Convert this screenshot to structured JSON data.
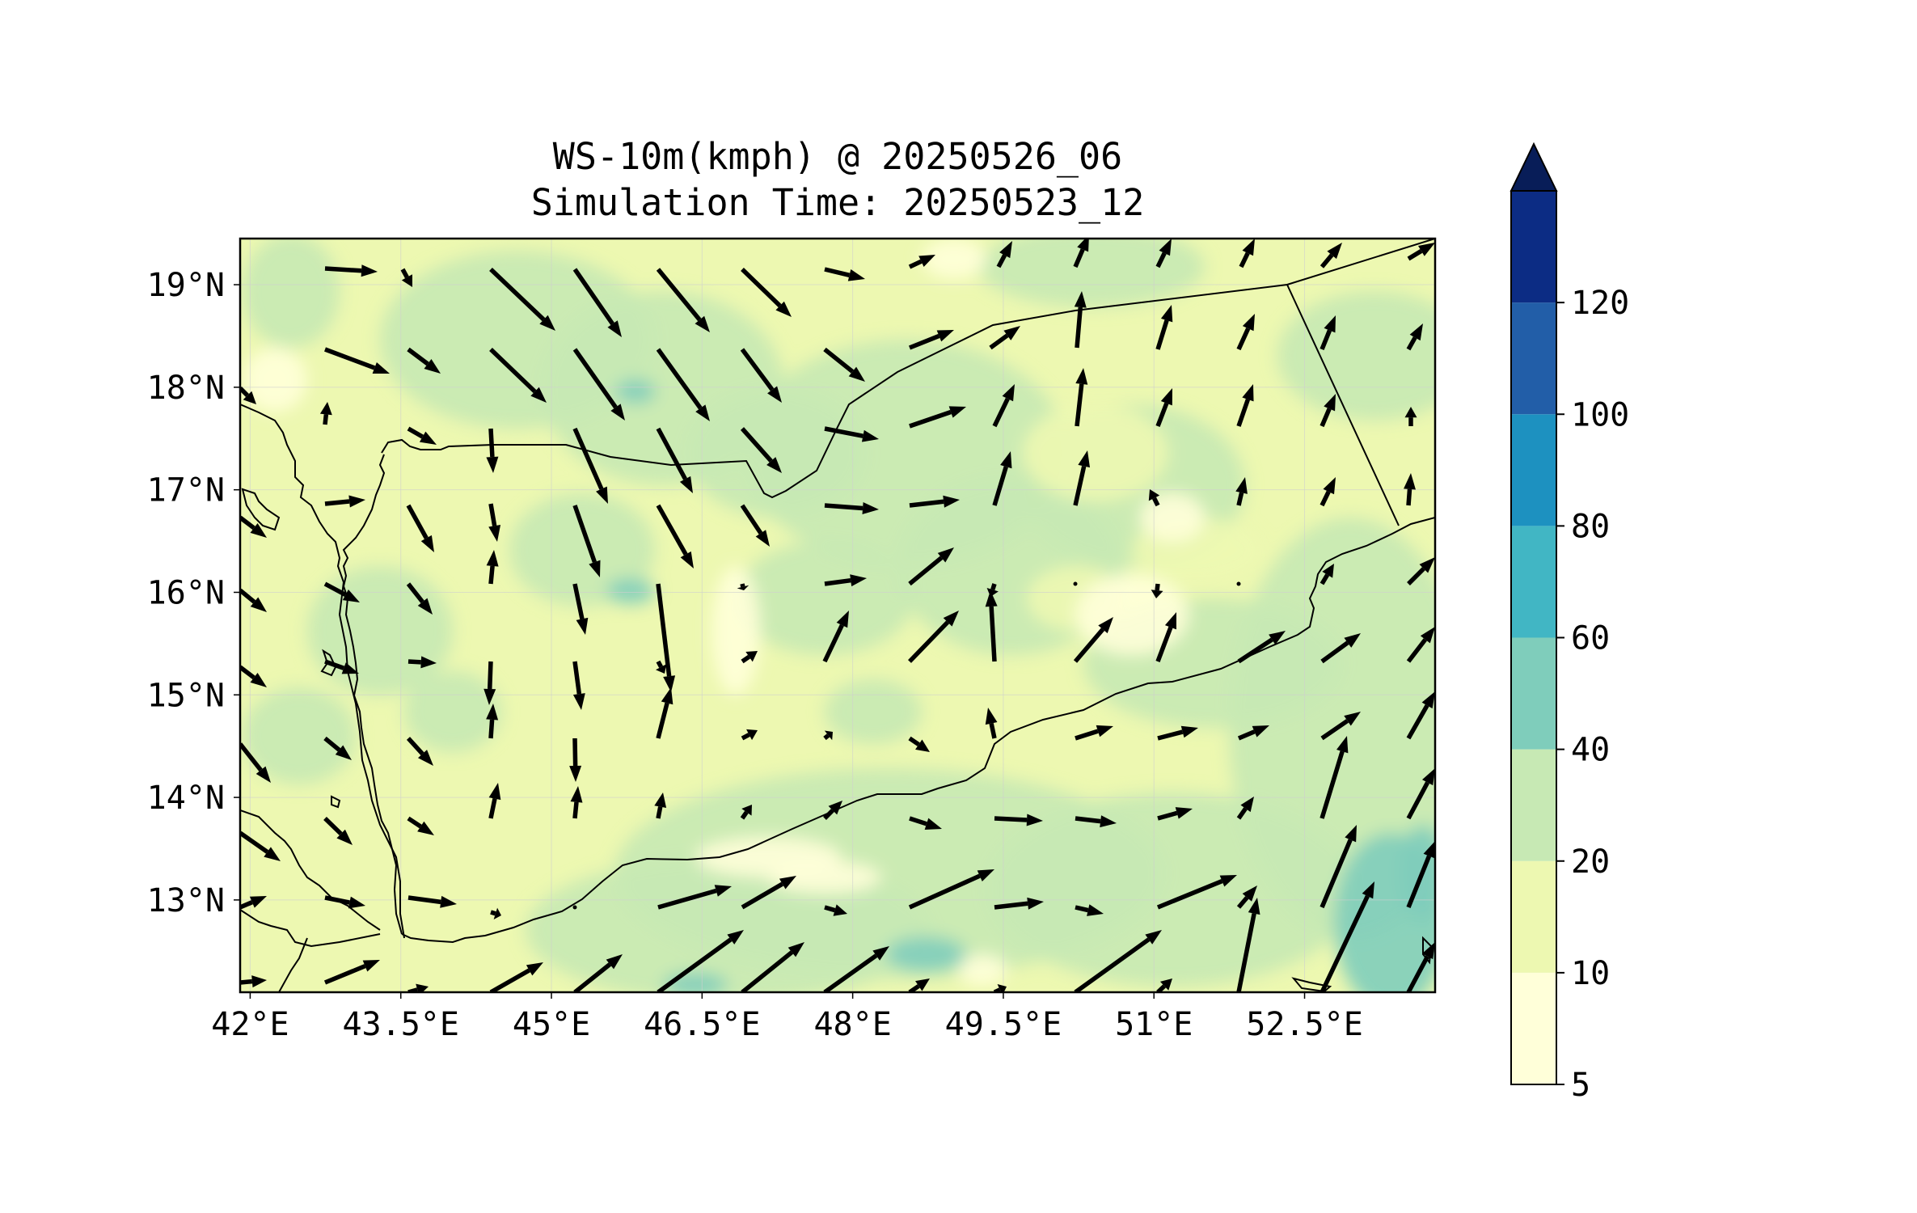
{
  "chart_data": {
    "type": "heatmap",
    "title_line1": "WS-10m(kmph) @ 20250526_06",
    "title_line2": "Simulation Time: 20250523_12",
    "x_ticks": [
      "42°E",
      "43.5°E",
      "45°E",
      "46.5°E",
      "48°E",
      "49.5°E",
      "51°E",
      "52.5°E"
    ],
    "y_ticks": [
      "19°N",
      "18°N",
      "17°N",
      "16°N",
      "15°N",
      "14°N",
      "13°N"
    ],
    "x_range": [
      41.9,
      53.8
    ],
    "y_range": [
      12.1,
      19.45
    ],
    "grid": true,
    "colorbar": {
      "levels": [
        5,
        10,
        20,
        40,
        60,
        80,
        100,
        120
      ],
      "level_labels": [
        "5",
        "10",
        "20",
        "40",
        "60",
        "80",
        "100",
        "120"
      ],
      "colors": [
        "#ffffd9",
        "#edf8b1",
        "#c7e9b4",
        "#7fcdbb",
        "#41b6c4",
        "#1d91c0",
        "#225ea8",
        "#0c2c84"
      ],
      "extend_max_color": "#081d58",
      "position": "right"
    },
    "colors": {
      "map_background": "#edf8b1",
      "frame": "#000000",
      "grid": "#cccccc",
      "arrow": "#000000"
    }
  }
}
